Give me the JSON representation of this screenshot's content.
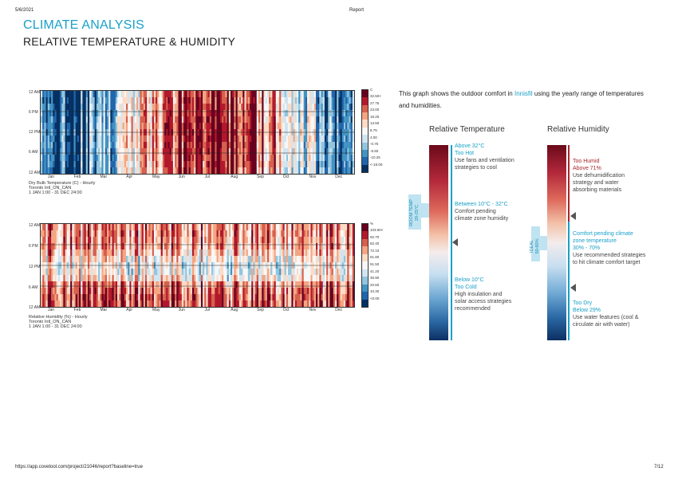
{
  "header": {
    "date": "5/6/2021",
    "title": "Report"
  },
  "page": {
    "title": "CLIMATE ANALYSIS",
    "subtitle": "RELATIVE TEMPERATURE & HUMIDITY"
  },
  "chart_data": [
    {
      "type": "heatmap",
      "yticks": [
        "12 AM",
        "6 PM",
        "12 PM",
        "6 AM",
        "12 AM"
      ],
      "months": [
        "Jan",
        "Feb",
        "Mar",
        "Apr",
        "May",
        "Jun",
        "Jul",
        "Aug",
        "Sep",
        "Oct",
        "Nov",
        "Dec"
      ],
      "legend_unit": "C",
      "legend_labels": [
        "32.50<",
        "27.75",
        "23.00",
        "18.25",
        "13.50",
        "8.75",
        "4.00",
        "-0.75",
        "-5.50",
        "-10.25",
        "<-15.00"
      ],
      "caption": [
        "Dry Bulb Temperature (C) - Hourly",
        "Toronto Intl_ON_CAN",
        "1 JAN 1:00 - 31 DEC 24:00"
      ]
    },
    {
      "type": "heatmap",
      "yticks": [
        "12 AM",
        "6 PM",
        "12 PM",
        "6 AM",
        "12 AM"
      ],
      "months": [
        "Jan",
        "Feb",
        "Mar",
        "Apr",
        "May",
        "Jun",
        "Jul",
        "Aug",
        "Sep",
        "Oct",
        "Nov",
        "Dec"
      ],
      "legend_unit": "%",
      "legend_labels": [
        "103.60<",
        "92.70",
        "82.40",
        "72.10",
        "61.80",
        "51.50",
        "41.20",
        "30.90",
        "20.60",
        "10.30",
        "<0.00"
      ],
      "caption": [
        "Relative Humidity (%) - Hourly",
        "Toronto Intl_ON_CAN",
        "1 JAN 1:00 - 31 DEC 24:00"
      ]
    }
  ],
  "description": {
    "before": "This graph shows the outdoor comfort in ",
    "place": "Innisfil",
    "after": " using the yearly range of temperatures and humidities."
  },
  "temperature": {
    "title": "Relative Temperature",
    "side_label": [
      "ROOM TEMP",
      "20-25°C"
    ],
    "hot": {
      "head": [
        "Above 32°C",
        "Too Hot"
      ],
      "body": [
        "Use fans and ventilation",
        "strategies to cool"
      ]
    },
    "mid": {
      "head": [
        "Between 10°C - 32°C"
      ],
      "body": [
        "Comfort pending",
        "climate zone humidity"
      ]
    },
    "cold": {
      "head": [
        "Below 10°C",
        "Too Cold"
      ],
      "body": [
        "High insulation and",
        "solar access  strategies",
        "recommended"
      ]
    }
  },
  "humidity": {
    "title": "Relative Humidity",
    "side_label": [
      "IDEAL",
      "50-60%"
    ],
    "humid": {
      "head": [
        "Too Humid",
        "Above 71%"
      ],
      "body": [
        "Use dehumidification",
        "strategy and water",
        "absorbing materials"
      ]
    },
    "mid": {
      "head": [
        "Comfort pending climate",
        "zone temperature",
        "30% - 70%"
      ],
      "body": [
        "Use recommended strategies",
        "to hit climate comfort target"
      ]
    },
    "dry": {
      "head": [
        "Too Dry",
        "Below 29%"
      ],
      "body": [
        "Use water features (cool &",
        "circulate air with water)"
      ]
    }
  },
  "footer": {
    "url": "https://app.covetool.com/project/21046/report?baseline=true",
    "page": "7/12"
  },
  "colors": {
    "accent": "#1aa0c8",
    "hot": "#a8272a",
    "cold": "#1d4f8c"
  }
}
